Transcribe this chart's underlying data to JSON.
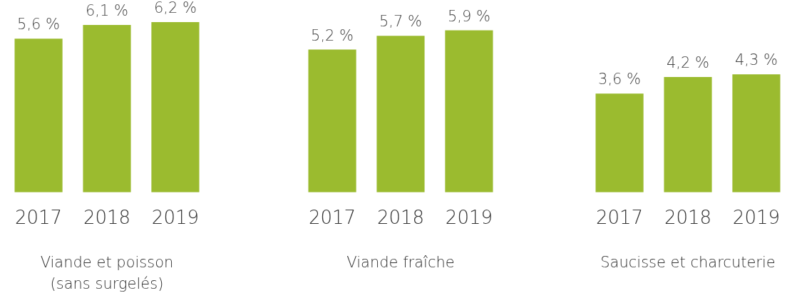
{
  "chart_data": [
    {
      "type": "bar",
      "xlabel": "Viande et poisson\n(sans surgelés)",
      "categories": [
        "2017",
        "2018",
        "2019"
      ],
      "values": [
        5.6,
        6.1,
        6.2
      ],
      "value_labels": [
        "5,6 %",
        "6,1 %",
        "6,2 %"
      ],
      "color": "#9bbb2f",
      "grid": false,
      "legend": false
    },
    {
      "type": "bar",
      "xlabel": "Viande fraîche",
      "categories": [
        "2017",
        "2018",
        "2019"
      ],
      "values": [
        5.2,
        5.7,
        5.9
      ],
      "value_labels": [
        "5,2 %",
        "5,7 %",
        "5,9 %"
      ],
      "color": "#9bbb2f",
      "grid": false,
      "legend": false
    },
    {
      "type": "bar",
      "xlabel": "Saucisse et charcuterie",
      "categories": [
        "2017",
        "2018",
        "2019"
      ],
      "values": [
        3.6,
        4.2,
        4.3
      ],
      "value_labels": [
        "3,6 %",
        "4,2 %",
        "4,3 %"
      ],
      "color": "#9bbb2f",
      "grid": false,
      "legend": false
    }
  ]
}
